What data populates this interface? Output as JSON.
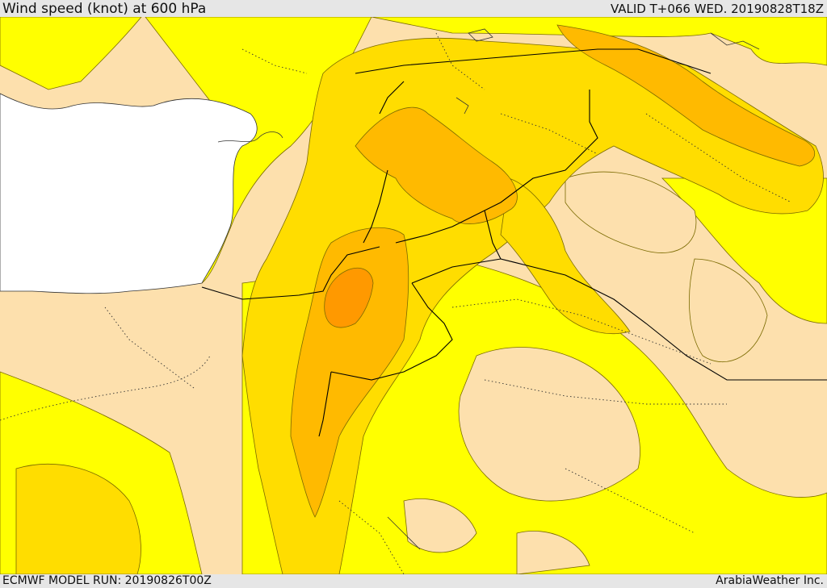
{
  "header": {
    "title": "Wind speed (knot) at 600 hPa",
    "valid": "VALID T+066 WED. 20190828T18Z"
  },
  "footer": {
    "model_run": "ECMWF MODEL RUN: 20190826T00Z",
    "brand": "ArabiaWeather Inc."
  },
  "colors": {
    "sea": "#ffffff",
    "band_lowest": "#fde0ad",
    "band_low": "#ffff00",
    "band_mid": "#ffdd00",
    "band_high": "#ffba00",
    "band_highest": "#ff9900",
    "border": "#000000",
    "admin_border": "#333333",
    "contour": "#7a6a00"
  }
}
